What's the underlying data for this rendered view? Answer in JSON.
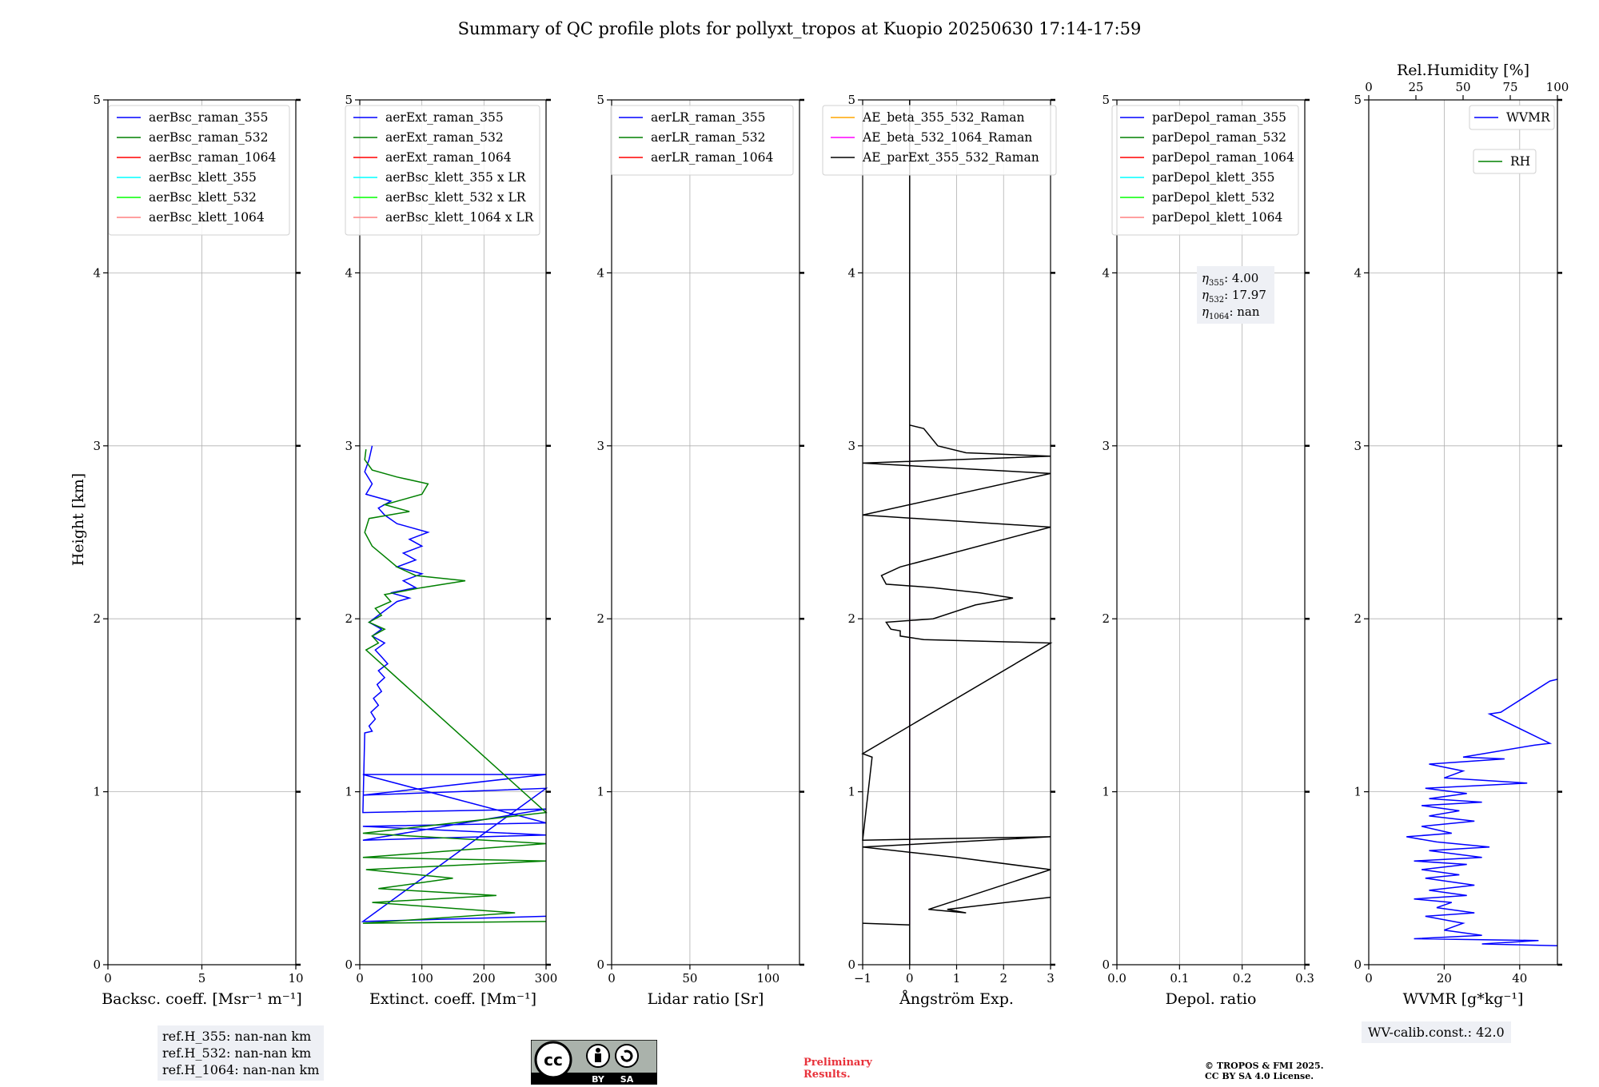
{
  "figure_title": "Summary of QC profile plots for pollyxt_tropos at Kuopio 20250630 17:14-17:59",
  "ylabel": "Height [km]",
  "ref_heights": [
    "ref.H_355: nan-nan km",
    "ref.H_532: nan-nan km",
    "ref.H_1064: nan-nan km"
  ],
  "wv_calib": "WV-calib.const.: 42.0",
  "preliminary": [
    "Preliminary",
    "Results."
  ],
  "copyright": [
    "© TROPOS & FMI 2025.",
    "CC BY SA 4.0 License."
  ],
  "cc_badge": {
    "left": "BY",
    "right": "SA"
  },
  "colors": {
    "c355": "#0000ff",
    "c532": "#008000",
    "c1064": "#ff0000",
    "k355": "#00ffff",
    "k532": "#00ff00",
    "k1064": "#ff8080",
    "orange": "#ffa500",
    "magenta": "#ff00ff",
    "black": "#000000"
  },
  "chart_data": [
    {
      "type": "line",
      "xlabel": "Backsc. coeff. [Msr⁻¹ m⁻¹]",
      "xlim": [
        0,
        10
      ],
      "ylim": [
        0,
        5
      ],
      "xticks": [
        "0",
        "5",
        "10"
      ],
      "xtick_values": [
        0,
        5,
        10
      ],
      "yticks": [
        "0",
        "1",
        "2",
        "3",
        "4",
        "5"
      ],
      "legend_position": "upper right",
      "series": [
        {
          "name": "aerBsc_raman_355",
          "color": "#0000ff",
          "points": []
        },
        {
          "name": "aerBsc_raman_532",
          "color": "#008000",
          "points": []
        },
        {
          "name": "aerBsc_raman_1064",
          "color": "#ff0000",
          "points": []
        },
        {
          "name": "aerBsc_klett_355",
          "color": "#00ffff",
          "points": []
        },
        {
          "name": "aerBsc_klett_532",
          "color": "#00ff00",
          "points": []
        },
        {
          "name": "aerBsc_klett_1064",
          "color": "#ff8080",
          "points": []
        }
      ]
    },
    {
      "type": "line",
      "xlabel": "Extinct. coeff. [Mm⁻¹]",
      "xlim": [
        0,
        300
      ],
      "ylim": [
        0,
        5
      ],
      "xticks": [
        "0",
        "100",
        "200",
        "300"
      ],
      "xtick_values": [
        0,
        100,
        200,
        300
      ],
      "yticks": [
        "0",
        "1",
        "2",
        "3",
        "4",
        "5"
      ],
      "legend_position": "upper right",
      "series": [
        {
          "name": "aerExt_raman_355",
          "color": "#0000ff",
          "points": [
            [
              300,
              0.28
            ],
            [
              5,
              0.25
            ],
            [
              300,
              1.02
            ],
            [
              5,
              0.98
            ],
            [
              300,
              1.1
            ],
            [
              5,
              1.1
            ],
            [
              300,
              0.82
            ],
            [
              5,
              0.8
            ],
            [
              300,
              0.75
            ],
            [
              5,
              0.72
            ],
            [
              300,
              0.9
            ],
            [
              5,
              0.88
            ],
            [
              8,
              1.34
            ],
            [
              20,
              1.35
            ],
            [
              15,
              1.38
            ],
            [
              25,
              1.42
            ],
            [
              18,
              1.46
            ],
            [
              30,
              1.5
            ],
            [
              22,
              1.54
            ],
            [
              35,
              1.58
            ],
            [
              28,
              1.62
            ],
            [
              40,
              1.66
            ],
            [
              30,
              1.7
            ],
            [
              45,
              1.74
            ],
            [
              35,
              1.78
            ],
            [
              25,
              1.82
            ],
            [
              40,
              1.86
            ],
            [
              20,
              1.9
            ],
            [
              35,
              1.94
            ],
            [
              15,
              1.98
            ],
            [
              30,
              2.02
            ],
            [
              45,
              2.06
            ],
            [
              60,
              2.1
            ],
            [
              80,
              2.12
            ],
            [
              50,
              2.15
            ],
            [
              90,
              2.18
            ],
            [
              70,
              2.22
            ],
            [
              100,
              2.26
            ],
            [
              60,
              2.3
            ],
            [
              90,
              2.34
            ],
            [
              70,
              2.38
            ],
            [
              100,
              2.42
            ],
            [
              80,
              2.46
            ],
            [
              110,
              2.5
            ],
            [
              60,
              2.55
            ],
            [
              40,
              2.6
            ],
            [
              30,
              2.64
            ],
            [
              50,
              2.68
            ],
            [
              10,
              2.72
            ],
            [
              20,
              2.78
            ],
            [
              8,
              2.85
            ],
            [
              15,
              2.92
            ],
            [
              20,
              3.0
            ]
          ]
        },
        {
          "name": "aerExt_raman_532",
          "color": "#008000",
          "points": [
            [
              300,
              0.25
            ],
            [
              5,
              0.24
            ],
            [
              250,
              0.3
            ],
            [
              20,
              0.36
            ],
            [
              220,
              0.4
            ],
            [
              30,
              0.44
            ],
            [
              150,
              0.5
            ],
            [
              10,
              0.55
            ],
            [
              300,
              0.6
            ],
            [
              5,
              0.62
            ],
            [
              300,
              0.7
            ],
            [
              5,
              0.76
            ],
            [
              300,
              0.88
            ],
            [
              10,
              1.82
            ],
            [
              30,
              1.86
            ],
            [
              20,
              1.9
            ],
            [
              40,
              1.94
            ],
            [
              15,
              1.98
            ],
            [
              35,
              2.02
            ],
            [
              25,
              2.06
            ],
            [
              50,
              2.1
            ],
            [
              40,
              2.14
            ],
            [
              100,
              2.18
            ],
            [
              170,
              2.22
            ],
            [
              90,
              2.25
            ],
            [
              60,
              2.3
            ],
            [
              40,
              2.36
            ],
            [
              20,
              2.42
            ],
            [
              8,
              2.5
            ],
            [
              15,
              2.58
            ],
            [
              80,
              2.62
            ],
            [
              40,
              2.66
            ],
            [
              100,
              2.72
            ],
            [
              110,
              2.78
            ],
            [
              60,
              2.82
            ],
            [
              20,
              2.86
            ],
            [
              8,
              2.92
            ],
            [
              10,
              2.98
            ]
          ]
        },
        {
          "name": "aerExt_raman_1064",
          "color": "#ff0000",
          "points": []
        },
        {
          "name": "aerBsc_klett_355 x LR",
          "color": "#00ffff",
          "points": []
        },
        {
          "name": "aerBsc_klett_532 x LR",
          "color": "#00ff00",
          "points": []
        },
        {
          "name": "aerBsc_klett_1064 x LR",
          "color": "#ff8080",
          "points": []
        }
      ]
    },
    {
      "type": "line",
      "xlabel": "Lidar ratio [Sr]",
      "xlim": [
        0,
        120
      ],
      "ylim": [
        0,
        5
      ],
      "xticks": [
        "0",
        "50",
        "100"
      ],
      "xtick_values": [
        0,
        50,
        100
      ],
      "yticks": [
        "0",
        "1",
        "2",
        "3",
        "4",
        "5"
      ],
      "legend_position": "upper right",
      "series": [
        {
          "name": "aerLR_raman_355",
          "color": "#0000ff",
          "points": []
        },
        {
          "name": "aerLR_raman_532",
          "color": "#008000",
          "points": []
        },
        {
          "name": "aerLR_raman_1064",
          "color": "#ff0000",
          "points": []
        }
      ]
    },
    {
      "type": "line",
      "xlabel": "Ångström Exp.",
      "xlim": [
        -1,
        3
      ],
      "ylim": [
        0,
        5
      ],
      "xticks": [
        "−1",
        "0",
        "1",
        "2",
        "3"
      ],
      "xtick_values": [
        -1,
        0,
        1,
        2,
        3
      ],
      "yticks": [
        "0",
        "1",
        "2",
        "3",
        "4",
        "5"
      ],
      "legend_position": "upper left",
      "series": [
        {
          "name": "AE_beta_355_532_Raman",
          "color": "#ffa500",
          "points": []
        },
        {
          "name": "AE_beta_532_1064_Raman",
          "color": "#ff00ff",
          "points": [
            [
              0,
              0.23
            ],
            [
              0,
              3.0
            ]
          ]
        },
        {
          "name": "AE_parExt_355_532_Raman",
          "color": "#000000",
          "points": [
            [
              -1,
              0.24
            ],
            [
              0,
              0.23
            ],
            [
              0,
              0.0
            ],
            [
              0,
              5
            ],
            [
              0,
              3.12
            ],
            [
              0.3,
              3.1
            ],
            [
              0.6,
              3.0
            ],
            [
              1.2,
              2.96
            ],
            [
              3,
              2.94
            ],
            [
              -1,
              2.9
            ],
            [
              3,
              2.84
            ],
            [
              -1,
              2.6
            ],
            [
              3,
              2.53
            ],
            [
              -0.2,
              2.3
            ],
            [
              -0.6,
              2.25
            ],
            [
              -0.5,
              2.2
            ],
            [
              0.5,
              2.18
            ],
            [
              1.5,
              2.15
            ],
            [
              2.2,
              2.12
            ],
            [
              1.4,
              2.08
            ],
            [
              0.5,
              2.0
            ],
            [
              -0.5,
              1.98
            ],
            [
              -0.4,
              1.94
            ],
            [
              -0.2,
              1.93
            ],
            [
              -0.2,
              1.9
            ],
            [
              0.3,
              1.88
            ],
            [
              3,
              1.86
            ],
            [
              -1,
              1.22
            ],
            [
              -0.8,
              1.2
            ],
            [
              -1,
              0.72
            ],
            [
              3,
              0.74
            ],
            [
              -1,
              0.68
            ],
            [
              1,
              0.62
            ],
            [
              3,
              0.55
            ],
            [
              0.4,
              0.32
            ],
            [
              1.2,
              0.3
            ],
            [
              0.8,
              0.32
            ],
            [
              3,
              0.39
            ]
          ]
        }
      ]
    },
    {
      "type": "line",
      "xlabel": "Depol. ratio",
      "xlim": [
        0,
        0.3
      ],
      "ylim": [
        0,
        5
      ],
      "xticks": [
        "0.0",
        "0.1",
        "0.2",
        "0.3"
      ],
      "xtick_values": [
        0,
        0.1,
        0.2,
        0.3
      ],
      "yticks": [
        "0",
        "1",
        "2",
        "3",
        "4",
        "5"
      ],
      "legend_position": "upper right",
      "annotation": {
        "eta355": "4.00",
        "eta532": "17.97",
        "eta1064": "nan"
      },
      "series": [
        {
          "name": "parDepol_raman_355",
          "color": "#0000ff",
          "points": []
        },
        {
          "name": "parDepol_raman_532",
          "color": "#008000",
          "points": []
        },
        {
          "name": "parDepol_raman_1064",
          "color": "#ff0000",
          "points": []
        },
        {
          "name": "parDepol_klett_355",
          "color": "#00ffff",
          "points": []
        },
        {
          "name": "parDepol_klett_532",
          "color": "#00ff00",
          "points": []
        },
        {
          "name": "parDepol_klett_1064",
          "color": "#ff8080",
          "points": []
        }
      ]
    },
    {
      "type": "line",
      "xlabel": "WVMR [g*kg⁻¹]",
      "top_xlabel": "Rel.Humidity [%]",
      "xlim": [
        0,
        50
      ],
      "ylim": [
        0,
        5
      ],
      "xticks": [
        "0",
        "20",
        "40"
      ],
      "xtick_values": [
        0,
        20,
        40
      ],
      "top_xticks": [
        "0",
        "25",
        "50",
        "75",
        "100"
      ],
      "top_xtick_values": [
        0,
        25,
        50,
        75,
        100
      ],
      "yticks": [
        "0",
        "1",
        "2",
        "3",
        "4",
        "5"
      ],
      "series": [
        {
          "name": "WVMR",
          "color": "#0000ff",
          "points": [
            [
              50,
              0.11
            ],
            [
              30,
              0.12
            ],
            [
              45,
              0.14
            ],
            [
              12,
              0.15
            ],
            [
              30,
              0.17
            ],
            [
              20,
              0.2
            ],
            [
              25,
              0.24
            ],
            [
              15,
              0.28
            ],
            [
              28,
              0.3
            ],
            [
              18,
              0.33
            ],
            [
              22,
              0.36
            ],
            [
              12,
              0.38
            ],
            [
              26,
              0.4
            ],
            [
              16,
              0.43
            ],
            [
              28,
              0.46
            ],
            [
              15,
              0.5
            ],
            [
              24,
              0.52
            ],
            [
              14,
              0.55
            ],
            [
              26,
              0.58
            ],
            [
              12,
              0.6
            ],
            [
              30,
              0.62
            ],
            [
              16,
              0.66
            ],
            [
              32,
              0.68
            ],
            [
              18,
              0.71
            ],
            [
              10,
              0.74
            ],
            [
              22,
              0.76
            ],
            [
              14,
              0.8
            ],
            [
              28,
              0.83
            ],
            [
              16,
              0.86
            ],
            [
              24,
              0.89
            ],
            [
              14,
              0.92
            ],
            [
              30,
              0.94
            ],
            [
              16,
              0.96
            ],
            [
              26,
              0.99
            ],
            [
              15,
              1.02
            ],
            [
              42,
              1.05
            ],
            [
              20,
              1.08
            ],
            [
              25,
              1.12
            ],
            [
              16,
              1.16
            ],
            [
              36,
              1.19
            ],
            [
              25,
              1.2
            ],
            [
              44,
              1.27
            ],
            [
              48,
              1.28
            ],
            [
              32,
              1.45
            ],
            [
              35,
              1.46
            ],
            [
              48,
              1.64
            ],
            [
              50,
              1.65
            ]
          ]
        },
        {
          "name": "RH",
          "color": "#008000",
          "points": []
        }
      ]
    }
  ]
}
